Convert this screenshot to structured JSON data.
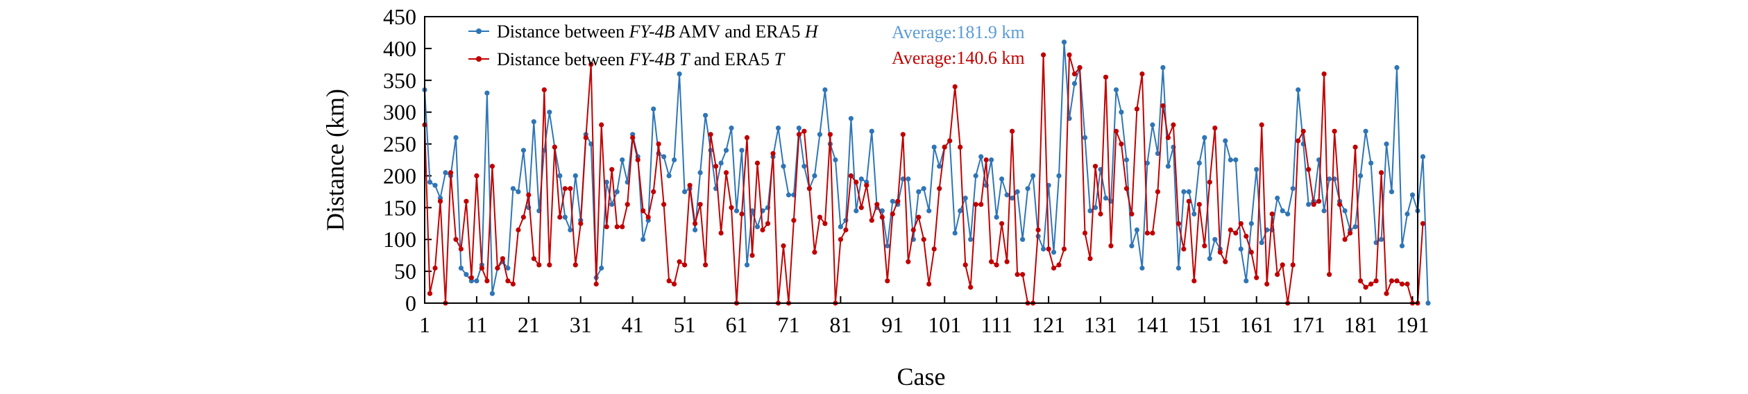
{
  "chart_data": {
    "type": "line",
    "xlabel": "Case",
    "ylabel": "Distance (km)",
    "ylim": [
      0,
      450
    ],
    "yticks": [
      0,
      50,
      100,
      150,
      200,
      250,
      300,
      350,
      400,
      450
    ],
    "xlim": [
      1,
      192
    ],
    "xticks": [
      1,
      11,
      21,
      31,
      41,
      51,
      61,
      71,
      81,
      91,
      101,
      111,
      121,
      131,
      141,
      151,
      161,
      171,
      181,
      191
    ],
    "grid": false,
    "legend_position": "top-left",
    "colors": {
      "blue": "#2e75b6",
      "red": "#c00000",
      "blue_avg": "#5b9bd5",
      "red_avg": "#c00000"
    },
    "legend": [
      {
        "parts": [
          {
            "t": "Distance between ",
            "i": false
          },
          {
            "t": "FY-4B",
            "i": true
          },
          {
            "t": " AMV and ERA5 ",
            "i": false
          },
          {
            "t": "H",
            "i": true
          }
        ]
      },
      {
        "parts": [
          {
            "t": "Distance between ",
            "i": false
          },
          {
            "t": "FY-4B",
            "i": true
          },
          {
            "t": " ",
            "i": false
          },
          {
            "t": "T",
            "i": true
          },
          {
            "t": " and ERA5 ",
            "i": false
          },
          {
            "t": "T",
            "i": true
          }
        ]
      }
    ],
    "annotations": [
      "Average:181.9 km",
      "Average:140.6 km"
    ],
    "series": [
      {
        "values": [
          335,
          190,
          185,
          165,
          205,
          200,
          260,
          55,
          45,
          35,
          35,
          60,
          330,
          15,
          55,
          65,
          55,
          180,
          175,
          240,
          150,
          285,
          145,
          240,
          300,
          245,
          200,
          135,
          115,
          200,
          130,
          265,
          250,
          40,
          55,
          190,
          155,
          175,
          225,
          190,
          265,
          230,
          100,
          130,
          305,
          235,
          230,
          200,
          225,
          360,
          175,
          180,
          115,
          205,
          295,
          240,
          180,
          220,
          240,
          275,
          145,
          240,
          60,
          145,
          120,
          145,
          150,
          230,
          275,
          215,
          170,
          170,
          275,
          215,
          180,
          200,
          265,
          335,
          250,
          225,
          120,
          130,
          290,
          145,
          195,
          190,
          270,
          150,
          145,
          90,
          160,
          155,
          195,
          195,
          100,
          175,
          180,
          145,
          245,
          215,
          245,
          255,
          110,
          145,
          165,
          100,
          200,
          230,
          185,
          225,
          135,
          195,
          170,
          165,
          175,
          100,
          180,
          200,
          105,
          85,
          185,
          80,
          200,
          410,
          290,
          345,
          370,
          260,
          145,
          150,
          210,
          165,
          160,
          335,
          300,
          225,
          90,
          115,
          55,
          220,
          280,
          235,
          370,
          215,
          245,
          55,
          175,
          175,
          140,
          220,
          260,
          70,
          100,
          85,
          255,
          225,
          225,
          85,
          35,
          125,
          210,
          95,
          115,
          115,
          165,
          145,
          140,
          180,
          335,
          250,
          155,
          160,
          225,
          145,
          195,
          195,
          160,
          145,
          115,
          120,
          200,
          270,
          220,
          95,
          100,
          250,
          175,
          370,
          90,
          140,
          170,
          145,
          230,
          0
        ]
      },
      {
        "values": [
          280,
          15,
          55,
          160,
          0,
          205,
          100,
          85,
          160,
          40,
          200,
          55,
          35,
          215,
          55,
          70,
          35,
          30,
          115,
          135,
          170,
          70,
          60,
          335,
          60,
          245,
          135,
          180,
          180,
          60,
          125,
          260,
          375,
          30,
          280,
          120,
          210,
          120,
          120,
          155,
          260,
          225,
          145,
          135,
          175,
          250,
          155,
          35,
          30,
          65,
          60,
          185,
          125,
          155,
          60,
          265,
          215,
          110,
          205,
          150,
          0,
          140,
          260,
          75,
          220,
          115,
          125,
          235,
          0,
          90,
          0,
          130,
          265,
          270,
          180,
          80,
          135,
          125,
          265,
          0,
          100,
          115,
          200,
          190,
          150,
          185,
          130,
          155,
          135,
          35,
          140,
          160,
          265,
          65,
          115,
          135,
          100,
          30,
          85,
          180,
          245,
          255,
          340,
          245,
          60,
          25,
          155,
          155,
          225,
          65,
          60,
          125,
          65,
          270,
          45,
          45,
          0,
          0,
          115,
          390,
          85,
          55,
          60,
          85,
          390,
          360,
          370,
          110,
          70,
          215,
          140,
          355,
          90,
          270,
          250,
          180,
          140,
          305,
          360,
          110,
          110,
          175,
          310,
          260,
          280,
          125,
          85,
          160,
          35,
          155,
          90,
          190,
          275,
          80,
          65,
          115,
          110,
          125,
          105,
          80,
          40,
          280,
          30,
          140,
          45,
          60,
          0,
          60,
          255,
          270,
          210,
          155,
          160,
          360,
          45,
          270,
          155,
          100,
          110,
          245,
          35,
          25,
          30,
          35,
          205,
          15,
          35,
          35,
          30,
          30,
          0,
          0,
          125
        ]
      }
    ]
  }
}
